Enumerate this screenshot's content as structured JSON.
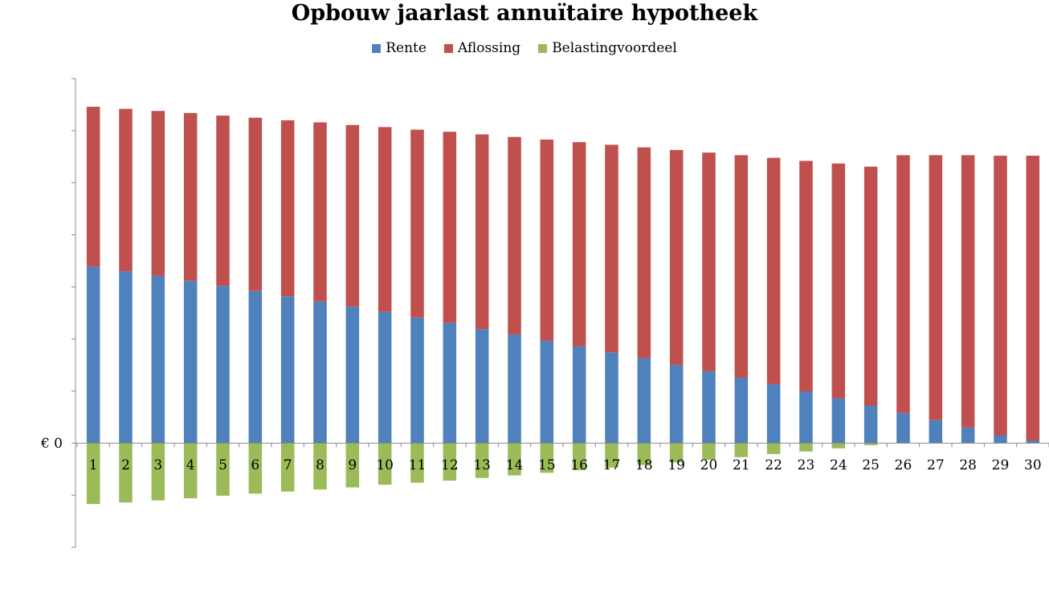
{
  "chart_data": {
    "type": "bar",
    "stacked": true,
    "title": "Opbouw jaarlast annuïtaire hypotheek",
    "xlabel": "",
    "ylabel": "",
    "categories": [
      "1",
      "2",
      "3",
      "4",
      "5",
      "6",
      "7",
      "8",
      "9",
      "10",
      "11",
      "12",
      "13",
      "14",
      "15",
      "16",
      "17",
      "18",
      "19",
      "20",
      "21",
      "22",
      "23",
      "24",
      "25",
      "26",
      "27",
      "28",
      "29",
      "30"
    ],
    "y_tick_label": "€ 0",
    "ylim": [
      -2.0,
      7.0
    ],
    "grid": false,
    "legend_position": "top",
    "series": [
      {
        "name": "Rente",
        "color": "#4F81BD",
        "values": [
          3.39,
          3.3,
          3.21,
          3.12,
          3.02,
          2.92,
          2.82,
          2.72,
          2.62,
          2.52,
          2.41,
          2.31,
          2.19,
          2.09,
          1.97,
          1.86,
          1.74,
          1.63,
          1.5,
          1.38,
          1.26,
          1.13,
          0.99,
          0.86,
          0.72,
          0.58,
          0.44,
          0.3,
          0.15,
          0.05
        ]
      },
      {
        "name": "Aflossing",
        "color": "#C0504D",
        "values": [
          3.07,
          3.12,
          3.17,
          3.22,
          3.27,
          3.33,
          3.38,
          3.44,
          3.49,
          3.55,
          3.61,
          3.67,
          3.74,
          3.79,
          3.86,
          3.92,
          3.99,
          4.05,
          4.13,
          4.2,
          4.27,
          4.35,
          4.43,
          4.51,
          4.59,
          4.95,
          5.09,
          5.23,
          5.37,
          5.47
        ]
      },
      {
        "name": "Belastingvoordeel",
        "color": "#9BBB59",
        "values": [
          -1.17,
          -1.14,
          -1.1,
          -1.06,
          -1.01,
          -0.97,
          -0.93,
          -0.89,
          -0.85,
          -0.8,
          -0.76,
          -0.72,
          -0.67,
          -0.62,
          -0.57,
          -0.52,
          -0.47,
          -0.42,
          -0.37,
          -0.32,
          -0.27,
          -0.21,
          -0.16,
          -0.1,
          -0.04,
          0,
          0,
          0,
          0,
          0
        ]
      }
    ]
  }
}
